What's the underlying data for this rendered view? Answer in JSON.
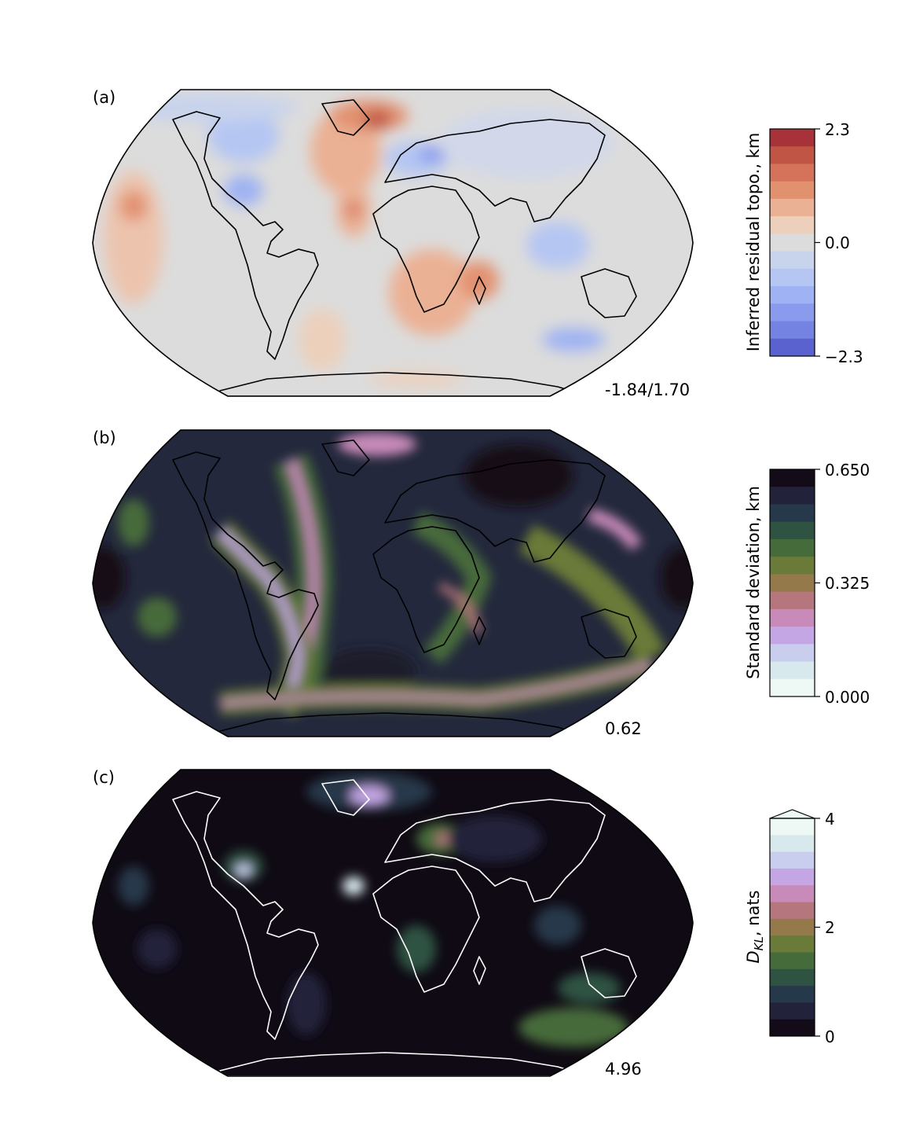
{
  "panels": [
    {
      "label": "(a)",
      "stat": "-1.84/1.70",
      "ocean_color": "#dcdcdc",
      "coast_color": "#000000",
      "colorbar": {
        "title": "Inferred residual topo., km",
        "ticks": [
          "2.3",
          "0.0",
          "−2.3"
        ],
        "colors": [
          "#a83239",
          "#c05445",
          "#d4735a",
          "#e2916f",
          "#ebb194",
          "#ecd0bc",
          "#dcdcdc",
          "#c8d3ec",
          "#b5c6f3",
          "#9fb2f3",
          "#8a9bed",
          "#7482e2",
          "#5a62d0"
        ],
        "extend_top": false
      }
    },
    {
      "label": "(b)",
      "stat": "0.62",
      "ocean_color": "#23283c",
      "coast_color": "#000000",
      "colorbar": {
        "title": "Standard deviation, km",
        "ticks": [
          "0.650",
          "0.325",
          "0.000"
        ],
        "colors": [
          "#130c18",
          "#22223a",
          "#26394a",
          "#2e5343",
          "#466b3a",
          "#6a7a39",
          "#947a4b",
          "#b6767d",
          "#c78ab9",
          "#c3a6e3",
          "#c9cdee",
          "#d8e9ee",
          "#eef8f4"
        ],
        "extend_top": false
      }
    },
    {
      "label": "(c)",
      "stat": "4.96",
      "ocean_color": "#0f0a14",
      "coast_color": "#ffffff",
      "colorbar": {
        "title": "D_KL, nats",
        "title_main": "D",
        "title_sub": "KL",
        "title_rest": ", nats",
        "ticks": [
          "4",
          "2",
          "0"
        ],
        "colors": [
          "#eef8f4",
          "#d8e9ee",
          "#c9cdee",
          "#c3a6e3",
          "#c78ab9",
          "#b6767d",
          "#947a4b",
          "#6a7a39",
          "#466b3a",
          "#2e5343",
          "#26394a",
          "#22223a",
          "#130c18"
        ],
        "extend_top": true
      }
    }
  ]
}
